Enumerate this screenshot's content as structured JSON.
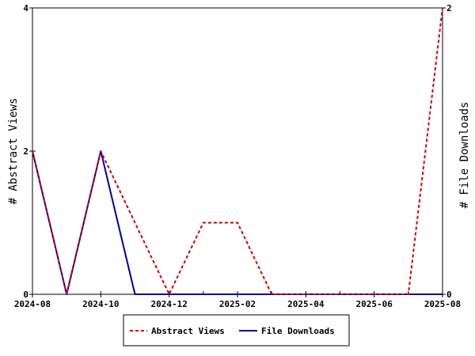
{
  "chart_data": {
    "type": "line",
    "categories": [
      "2024-08",
      "2024-09",
      "2024-10",
      "2024-11",
      "2024-12",
      "2025-01",
      "2025-02",
      "2025-03",
      "2025-04",
      "2025-05",
      "2025-06",
      "2025-07",
      "2025-08"
    ],
    "x_tick_labels": [
      "2024-08",
      "2024-10",
      "2024-12",
      "2025-02",
      "2025-04",
      "2025-06",
      "2025-08"
    ],
    "y_left": {
      "label": "# Abstract Views",
      "ticks": [
        "0",
        "2",
        "4"
      ],
      "ylim": [
        0,
        4
      ]
    },
    "y_right": {
      "label": "# File Downloads",
      "ticks": [
        "0",
        "2"
      ],
      "ylim": [
        0,
        2
      ]
    },
    "series": [
      {
        "name": "Abstract Views",
        "axis": "left",
        "color": "#cc0000",
        "style": "dashed",
        "values": [
          2,
          0,
          2,
          1,
          0,
          1,
          1,
          0,
          0,
          0,
          0,
          0,
          4
        ]
      },
      {
        "name": "File Downloads",
        "axis": "right",
        "color": "#000099",
        "style": "solid",
        "values": [
          1,
          0,
          1,
          0,
          0,
          0,
          0,
          0,
          0,
          0,
          0,
          0,
          0
        ]
      }
    ],
    "legend": {
      "position": "bottom-center"
    },
    "grid": false
  }
}
